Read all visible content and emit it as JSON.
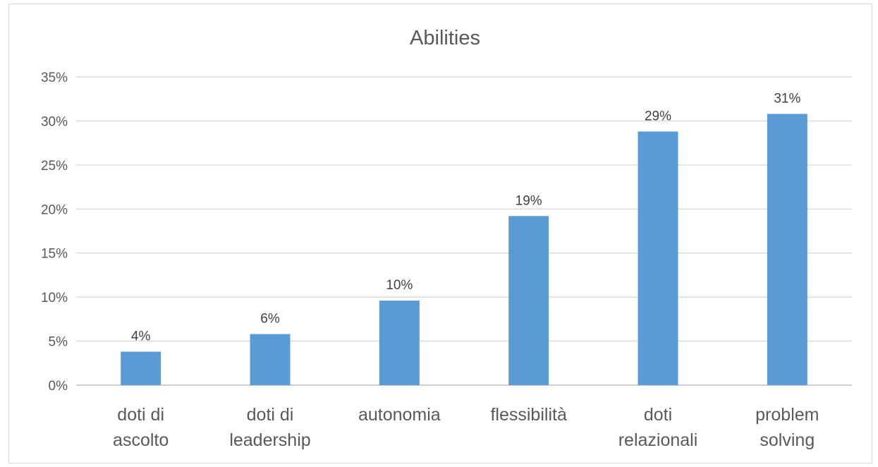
{
  "chart_data": {
    "type": "bar",
    "title": "Abilities",
    "xlabel": "",
    "ylabel": "",
    "ylim": [
      0,
      0.35
    ],
    "y_tick_labels": [
      "0%",
      "5%",
      "10%",
      "15%",
      "20%",
      "25%",
      "30%",
      "35%"
    ],
    "grid": true,
    "legend": "none",
    "bar_color": "#5b9bd5",
    "categories": [
      [
        "doti di",
        "ascolto"
      ],
      [
        "doti di",
        "leadership"
      ],
      [
        "autonomia"
      ],
      [
        "flessibilità"
      ],
      [
        "doti",
        "relazionali"
      ],
      [
        "problem",
        "solving"
      ]
    ],
    "values": [
      0.038,
      0.058,
      0.096,
      0.192,
      0.288,
      0.308
    ],
    "data_labels": [
      "4%",
      "6%",
      "10%",
      "19%",
      "29%",
      "31%"
    ]
  }
}
